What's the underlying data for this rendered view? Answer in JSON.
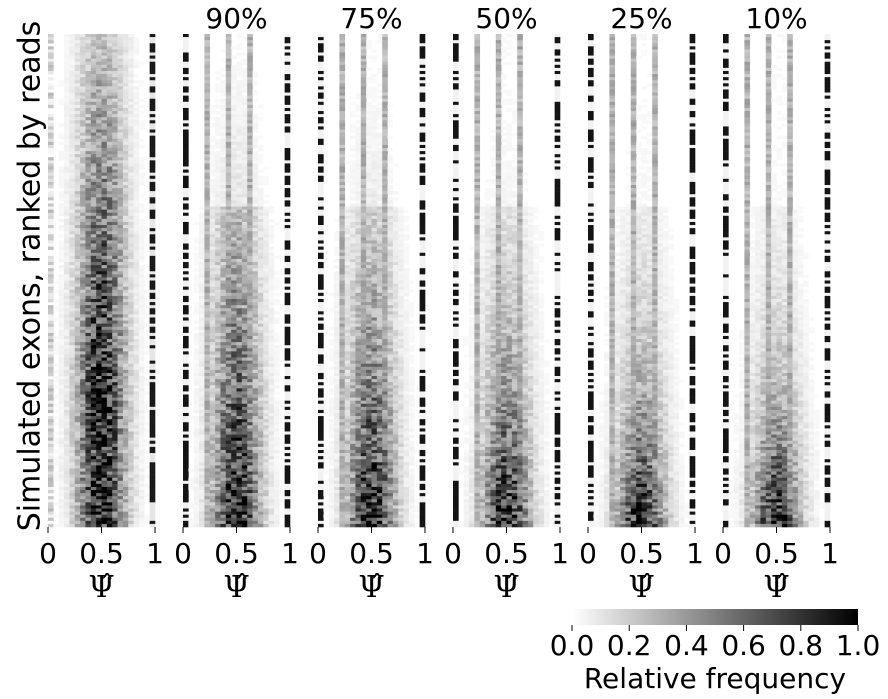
{
  "chart_data": {
    "type": "heatmap",
    "ylabel": "Simulated exons, ranked by reads",
    "panels": [
      {
        "title": "",
        "xlabel": "Ψ̂",
        "xticks": [
          "0",
          "0.5",
          "1"
        ],
        "profile": "full"
      },
      {
        "title": "90%",
        "xlabel": "Ψ̂",
        "xticks": [
          "0",
          "0.5",
          "1"
        ],
        "profile": 0.9
      },
      {
        "title": "75%",
        "xlabel": "Ψ̂",
        "xticks": [
          "0",
          "0.5",
          "1"
        ],
        "profile": 0.75
      },
      {
        "title": "50%",
        "xlabel": "Ψ̂",
        "xticks": [
          "0",
          "0.5",
          "1"
        ],
        "profile": 0.5
      },
      {
        "title": "25%",
        "xlabel": "Ψ̂",
        "xticks": [
          "0",
          "0.5",
          "1"
        ],
        "profile": 0.25
      },
      {
        "title": "10%",
        "xlabel": "Ψ̂",
        "xticks": [
          "0",
          "0.5",
          "1"
        ],
        "profile": 0.1
      }
    ],
    "x_range": [
      0,
      1
    ],
    "colorbar": {
      "label": "Relative frequency",
      "ticks": [
        "0.0",
        "0.2",
        "0.4",
        "0.6",
        "0.8",
        "1.0"
      ],
      "range": [
        0,
        1
      ],
      "colormap": "white-to-black"
    },
    "colors": {
      "low": "#ffffff",
      "high": "#000000"
    }
  }
}
